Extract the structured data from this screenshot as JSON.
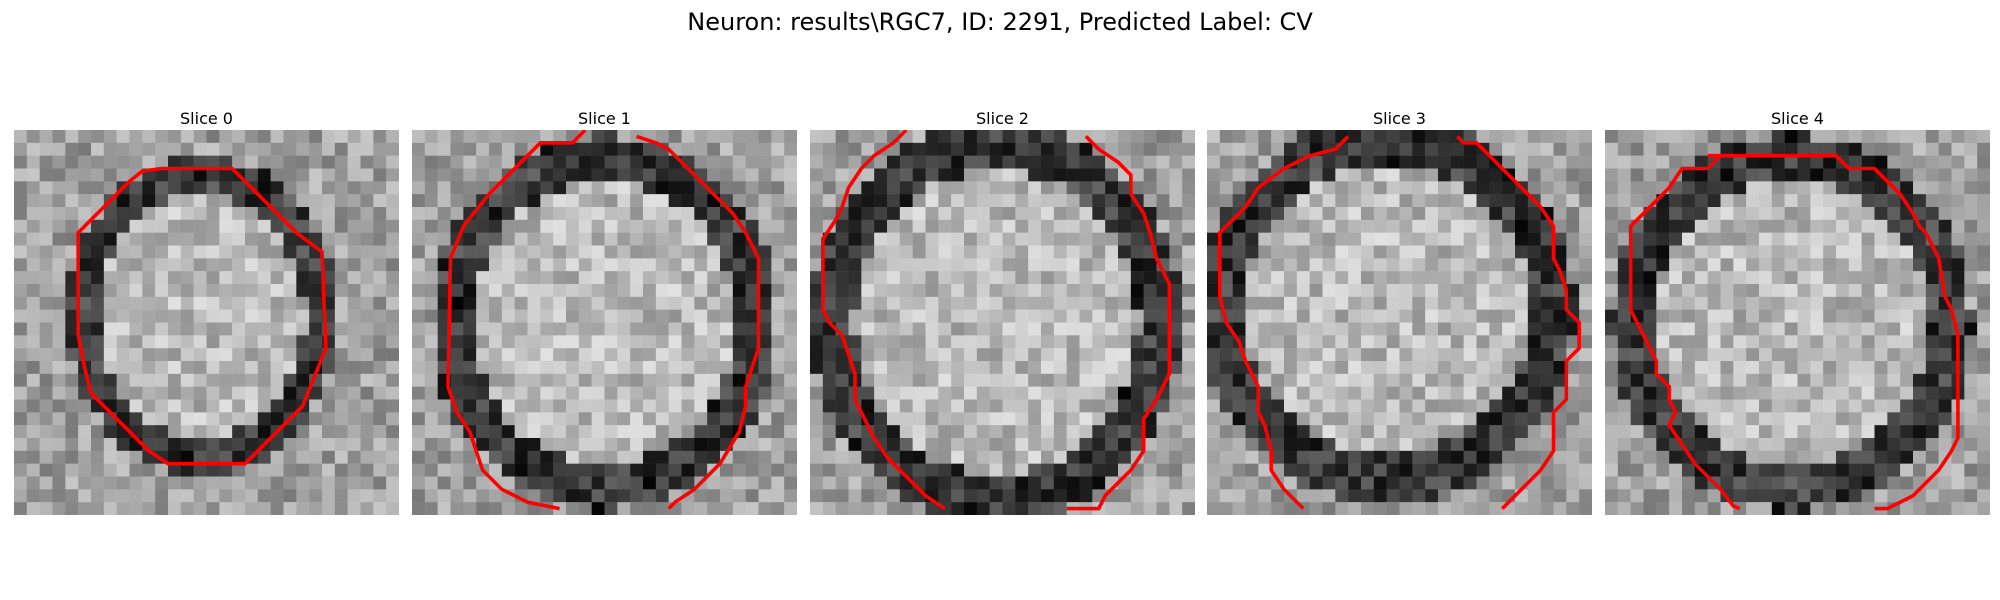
{
  "figure": {
    "title": "Neuron: results\\RGC7, ID: 2291, Predicted Label: CV",
    "contour_color": "#ff0000",
    "panels": [
      {
        "title": "Slice 0"
      },
      {
        "title": "Slice 1"
      },
      {
        "title": "Slice 2"
      },
      {
        "title": "Slice 3"
      },
      {
        "title": "Slice 4"
      }
    ]
  }
}
